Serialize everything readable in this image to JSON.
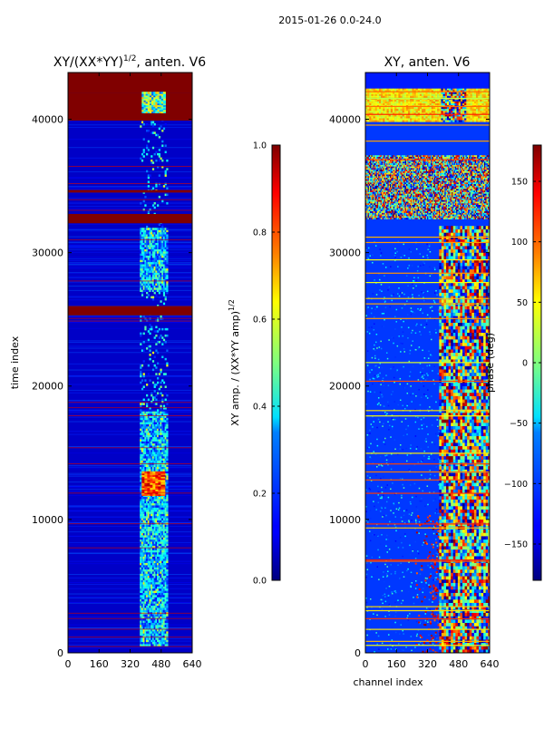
{
  "suptitle": "2015-01-26 0.0-24.0",
  "chart_data": [
    {
      "type": "heatmap",
      "title": "XY/(XX*YY)^{1/2}, anten. V6",
      "title_base": "XY/(XX*YY)",
      "title_sup": "1/2",
      "title_suffix": ", anten. V6",
      "xlabel": "",
      "ylabel": "time index",
      "xlim": [
        0,
        640
      ],
      "ylim": [
        0,
        43500
      ],
      "xticks": [
        0,
        160,
        320,
        480,
        640
      ],
      "yticks": [
        0,
        10000,
        20000,
        30000,
        40000
      ],
      "colormap": "jet",
      "background_value": 0.05,
      "full_rows": [
        [
          39900,
          42000,
          1.0
        ],
        [
          40100,
          40400,
          1.0
        ],
        [
          40700,
          40900,
          1.0
        ],
        [
          32200,
          32900,
          1.0
        ],
        [
          34500,
          34700,
          1.0
        ],
        [
          25300,
          26000,
          1.0
        ]
      ],
      "colorbar": {
        "label": "XY amp. / (XX*YY amp)^{1/2}",
        "label_base": "XY amp. / (XX*YY amp)",
        "label_sup": "1/2",
        "range": [
          0.0,
          1.0
        ],
        "ticks": [
          0.0,
          0.2,
          0.4,
          0.6,
          0.8,
          1.0
        ],
        "tick_labels": [
          "0.0",
          "0.2",
          "0.4",
          "0.6",
          "0.8",
          "1.0"
        ]
      }
    },
    {
      "type": "heatmap",
      "title": "XY, anten. V6",
      "xlabel": "channel index",
      "ylabel": "",
      "xlim": [
        0,
        640
      ],
      "ylim": [
        0,
        43500
      ],
      "xticks": [
        0,
        160,
        320,
        480,
        640
      ],
      "yticks": [
        0,
        10000,
        20000,
        30000,
        40000
      ],
      "colormap": "jet",
      "colorbar": {
        "label": "phase (deg)",
        "range": [
          -180,
          180
        ],
        "ticks": [
          150,
          100,
          50,
          0,
          -50,
          -100,
          -150
        ],
        "tick_labels": [
          "150",
          "100",
          "50",
          "0",
          "−50",
          "−100",
          "−150"
        ]
      }
    }
  ]
}
